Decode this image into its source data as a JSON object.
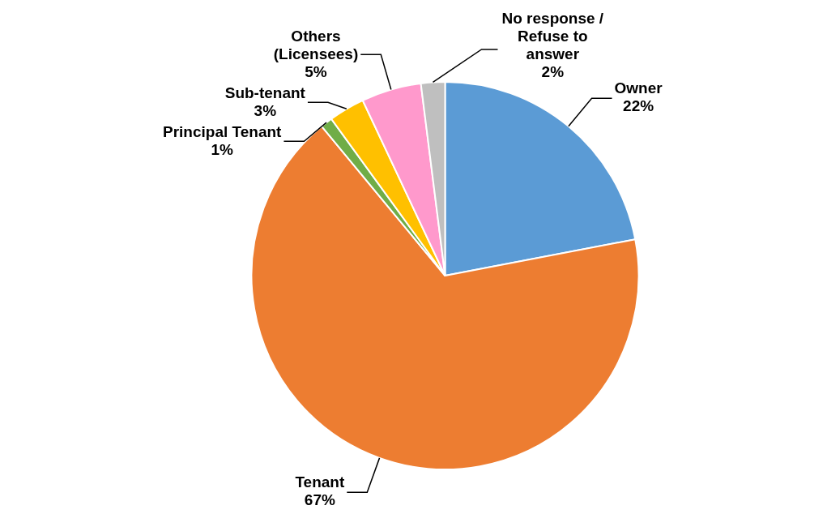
{
  "chart_data": {
    "type": "pie",
    "categories": [
      "Owner",
      "Tenant",
      "Principal Tenant",
      "Sub-tenant",
      "Others (Licensees)",
      "No response / Refuse to answer"
    ],
    "values": [
      22,
      67,
      1,
      3,
      5,
      2
    ],
    "value_labels": [
      "22%",
      "67%",
      "1%",
      "3%",
      "5%",
      "2%"
    ],
    "colors": [
      "#5b9bd5",
      "#ed7d31",
      "#70ad47",
      "#ffc000",
      "#ff99cc",
      "#bfbfbf"
    ],
    "legend": false
  }
}
